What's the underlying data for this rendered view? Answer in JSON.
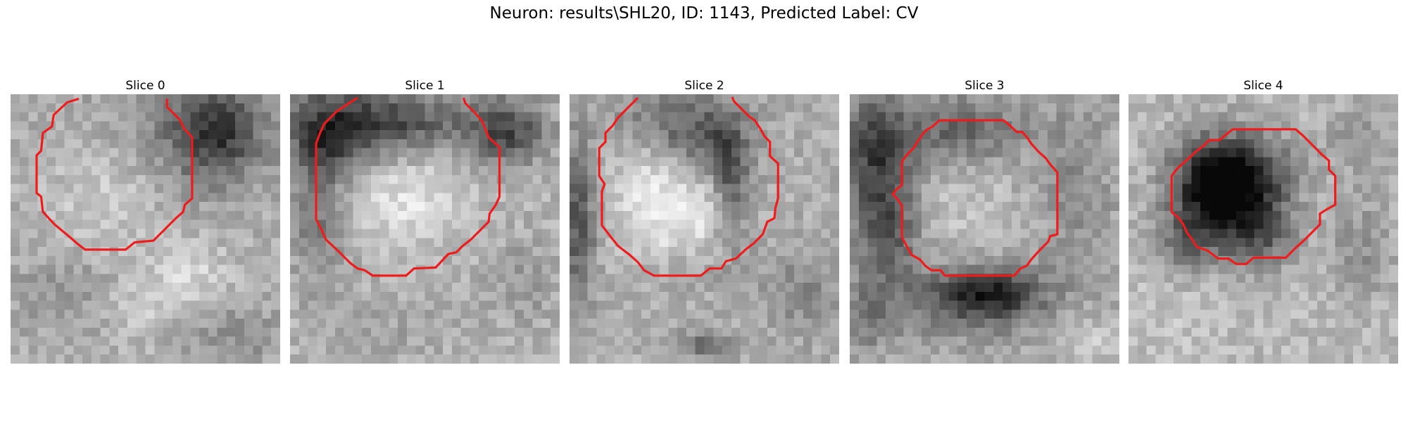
{
  "figure": {
    "title": "Neuron: results\\SHL20, ID: 1143, Predicted Label: CV"
  },
  "contour_color": "#ee1c1c",
  "panels": [
    {
      "title": "Slice 0"
    },
    {
      "title": "Slice 1"
    },
    {
      "title": "Slice 2"
    },
    {
      "title": "Slice 3"
    },
    {
      "title": "Slice 4"
    }
  ]
}
